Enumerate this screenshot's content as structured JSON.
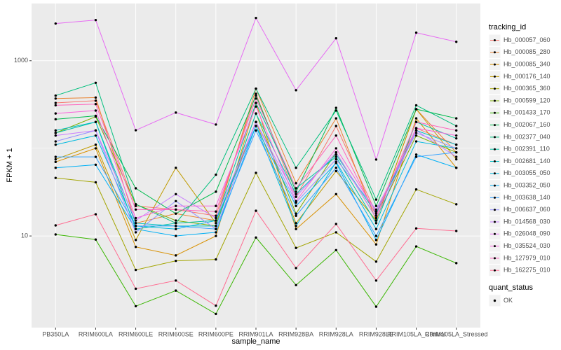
{
  "chart_data": {
    "type": "line",
    "log_y": true,
    "grid": true,
    "x_label": "sample_name",
    "y_label": "FPKM + 1",
    "legend_title": "tracking_id",
    "legend2_title": "quant_status",
    "legend2_items": [
      "OK"
    ],
    "point_color": "#000000",
    "categories": [
      "PB350LA",
      "RRIM600LA",
      "RRIM600LE",
      "RRIM600SE",
      "RRIM600PE",
      "RRIM901LA",
      "RRIM928BA",
      "RRIM928LA",
      "RRIM928LE",
      "RRIM105LA_Control",
      "RRIM105LA_Stressed"
    ],
    "ylim": [
      0.9,
      4500
    ],
    "yticks": [
      10,
      1000
    ],
    "series": [
      {
        "name": "Hb_000057_060",
        "color": "#F8766D",
        "values": [
          330,
          350,
          22,
          20,
          17,
          420,
          28,
          180,
          18,
          170,
          110
        ]
      },
      {
        "name": "Hb_000085_280",
        "color": "#EA8331",
        "values": [
          370,
          380,
          14,
          18,
          15,
          480,
          40,
          220,
          15,
          280,
          90
        ]
      },
      {
        "name": "Hb_000085_340",
        "color": "#D89000",
        "values": [
          70,
          100,
          7.5,
          6,
          10,
          330,
          12,
          30,
          8,
          220,
          60
        ]
      },
      {
        "name": "Hb_000176_140",
        "color": "#C09B00",
        "values": [
          75,
          110,
          9,
          60,
          14,
          200,
          14,
          55,
          15,
          280,
          75
        ]
      },
      {
        "name": "Hb_000365_360",
        "color": "#A3A500",
        "values": [
          46,
          41,
          4.1,
          5.2,
          5.4,
          52.5,
          7.3,
          11,
          5.1,
          34,
          23
        ]
      },
      {
        "name": "Hb_000599_120",
        "color": "#7CAE00",
        "values": [
          150,
          230,
          23,
          15,
          13,
          250,
          18,
          90,
          16,
          140,
          90
        ]
      },
      {
        "name": "Hb_001433_170",
        "color": "#39B600",
        "values": [
          10.4,
          9.1,
          1.58,
          2.38,
          1.29,
          9.6,
          2.75,
          6.9,
          1.56,
          7.6,
          4.9
        ]
      },
      {
        "name": "Hb_002067_160",
        "color": "#00BB4E",
        "values": [
          215,
          235,
          35,
          18,
          32,
          400,
          32,
          290,
          22,
          280,
          220
        ]
      },
      {
        "name": "Hb_002377_040",
        "color": "#00BF7D",
        "values": [
          400,
          560,
          23,
          14,
          50,
          480,
          60,
          270,
          26,
          310,
          180
        ]
      },
      {
        "name": "Hb_002391_110",
        "color": "#00C1A3",
        "values": [
          150,
          200,
          12,
          14,
          15,
          330,
          35,
          80,
          14,
          200,
          130
        ]
      },
      {
        "name": "Hb_002681_140",
        "color": "#00BFC4",
        "values": [
          160,
          200,
          14,
          13,
          13,
          250,
          30,
          85,
          18,
          160,
          110
        ]
      },
      {
        "name": "Hb_003055_050",
        "color": "#00BAE0",
        "values": [
          110,
          140,
          13,
          12,
          15,
          180,
          13,
          70,
          12,
          120,
          100
        ]
      },
      {
        "name": "Hb_003352_050",
        "color": "#00B0F6",
        "values": [
          60,
          65,
          12,
          10,
          11,
          180,
          22,
          68,
          9,
          85,
          60
        ]
      },
      {
        "name": "Hb_003638_140",
        "color": "#35A2FF",
        "values": [
          80,
          80,
          13,
          13,
          12,
          160,
          17,
          60,
          10,
          80,
          90
        ]
      },
      {
        "name": "Hb_006637_060",
        "color": "#9590FF",
        "values": [
          120,
          160,
          11,
          25,
          12,
          200,
          24,
          75,
          20,
          150,
          100
        ]
      },
      {
        "name": "Hb_014568_030",
        "color": "#C77CFF",
        "values": [
          140,
          160,
          15,
          30,
          16,
          200,
          28,
          90,
          16,
          160,
          80
        ]
      },
      {
        "name": "Hb_026048_090",
        "color": "#E76BF3",
        "values": [
          2655,
          2912,
          161,
          256,
          187,
          3076,
          461,
          1803,
          74.5,
          2089,
          1644
        ]
      },
      {
        "name": "Hb_035524_030",
        "color": "#FA62DB",
        "values": [
          250,
          270,
          16,
          22,
          22,
          300,
          25,
          100,
          19,
          170,
          140
        ]
      },
      {
        "name": "Hb_127979_010",
        "color": "#FF62BC",
        "values": [
          310,
          320,
          20,
          20,
          19,
          370,
          35,
          140,
          17,
          200,
          160
        ]
      },
      {
        "name": "Hb_162275_010",
        "color": "#FF6C91",
        "values": [
          13.2,
          17.7,
          2.5,
          3.1,
          1.6,
          19.4,
          4.3,
          13.7,
          3.1,
          12.2,
          11.4
        ]
      }
    ]
  }
}
